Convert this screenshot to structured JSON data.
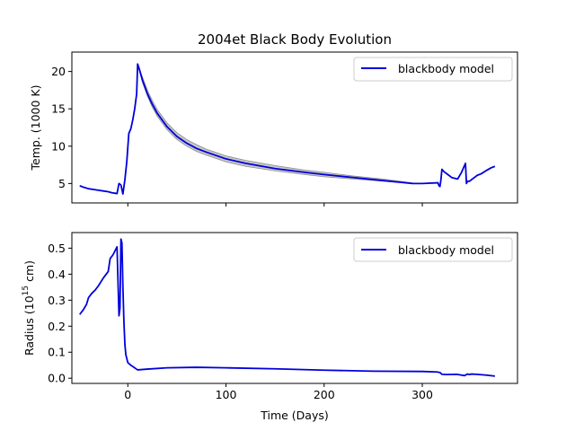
{
  "chart_data": [
    {
      "type": "line",
      "title": "2004et Black Body Evolution",
      "xlabel": "",
      "ylabel": "Temp. (1000 K)",
      "xlim": [
        -57,
        397
      ],
      "ylim": [
        2.4,
        22.6
      ],
      "xticks": [
        0,
        100,
        200,
        300
      ],
      "yticks": [
        5,
        10,
        15,
        20
      ],
      "grid": false,
      "legend": "top-right",
      "colors": {
        "line": "#0000dd",
        "band": "#bdbdbd",
        "band_edge": "#8c8c8c"
      },
      "series": [
        {
          "name": "blackbody model",
          "x": [
            -49,
            -45,
            -40,
            -35,
            -30,
            -25,
            -20,
            -16,
            -13,
            -11,
            -9,
            -7,
            -5,
            -3,
            -1,
            1,
            3,
            5,
            7,
            9,
            10,
            12,
            15,
            20,
            25,
            30,
            40,
            50,
            60,
            70,
            80,
            100,
            120,
            150,
            180,
            200,
            230,
            260,
            290,
            300,
            316,
            317,
            318,
            319,
            320,
            322,
            326,
            330,
            336,
            340,
            343,
            344,
            345,
            346,
            348,
            352,
            356,
            360,
            366,
            370,
            374
          ],
          "y": [
            4.7,
            4.5,
            4.3,
            4.2,
            4.1,
            4.0,
            3.9,
            3.75,
            3.7,
            3.65,
            5.0,
            4.8,
            3.6,
            5.5,
            8.0,
            11.7,
            12.3,
            13.5,
            15.0,
            17.0,
            21.0,
            20.2,
            18.8,
            17.0,
            15.6,
            14.4,
            12.6,
            11.3,
            10.4,
            9.7,
            9.2,
            8.3,
            7.7,
            7.0,
            6.5,
            6.2,
            5.8,
            5.4,
            5.0,
            5.0,
            5.1,
            4.7,
            4.6,
            5.5,
            6.9,
            6.6,
            6.2,
            5.8,
            5.6,
            6.5,
            7.4,
            7.7,
            5.0,
            5.3,
            5.3,
            5.7,
            6.1,
            6.3,
            6.8,
            7.1,
            7.3
          ]
        }
      ],
      "uncertainty_band": {
        "x": [
          10,
          15,
          20,
          25,
          30,
          40,
          50,
          60,
          70,
          80,
          100,
          120,
          150,
          180,
          200,
          230,
          260,
          290
        ],
        "lower": [
          21.0,
          18.5,
          16.7,
          15.2,
          14.0,
          12.2,
          10.9,
          10.0,
          9.3,
          8.8,
          7.9,
          7.3,
          6.7,
          6.2,
          5.9,
          5.6,
          5.3,
          5.0
        ],
        "upper": [
          21.0,
          19.2,
          17.5,
          16.1,
          14.9,
          13.1,
          11.8,
          10.9,
          10.2,
          9.6,
          8.7,
          8.1,
          7.4,
          6.8,
          6.5,
          6.0,
          5.6,
          5.1
        ]
      }
    },
    {
      "type": "line",
      "title": "",
      "xlabel": "Time (Days)",
      "ylabel_main": "Radius (10",
      "ylabel_exp": "15",
      "ylabel_end": " cm)",
      "xlim": [
        -57,
        397
      ],
      "ylim": [
        -0.02,
        0.56
      ],
      "xticks": [
        0,
        100,
        200,
        300
      ],
      "yticks": [
        0.0,
        0.1,
        0.2,
        0.3,
        0.4,
        0.5
      ],
      "grid": false,
      "legend": "top-right",
      "colors": {
        "line": "#0000dd"
      },
      "series": [
        {
          "name": "blackbody model",
          "x": [
            -49,
            -45,
            -42,
            -40,
            -37,
            -33,
            -30,
            -25,
            -20,
            -18,
            -15,
            -13,
            -11,
            -9,
            -8,
            -7,
            -6,
            -5,
            -4,
            -3,
            -2,
            0,
            3,
            5,
            10,
            20,
            40,
            70,
            100,
            150,
            200,
            250,
            300,
            315,
            318,
            320,
            325,
            335,
            340,
            343,
            346,
            348,
            350,
            355,
            365,
            374
          ],
          "x_note": "",
          "y": [
            0.245,
            0.265,
            0.285,
            0.31,
            0.325,
            0.34,
            0.355,
            0.385,
            0.41,
            0.46,
            0.475,
            0.49,
            0.505,
            0.24,
            0.27,
            0.535,
            0.52,
            0.35,
            0.22,
            0.13,
            0.09,
            0.06,
            0.05,
            0.045,
            0.032,
            0.035,
            0.04,
            0.042,
            0.04,
            0.036,
            0.031,
            0.027,
            0.026,
            0.024,
            0.022,
            0.015,
            0.014,
            0.015,
            0.012,
            0.01,
            0.016,
            0.014,
            0.016,
            0.015,
            0.012,
            0.008
          ]
        }
      ]
    }
  ]
}
